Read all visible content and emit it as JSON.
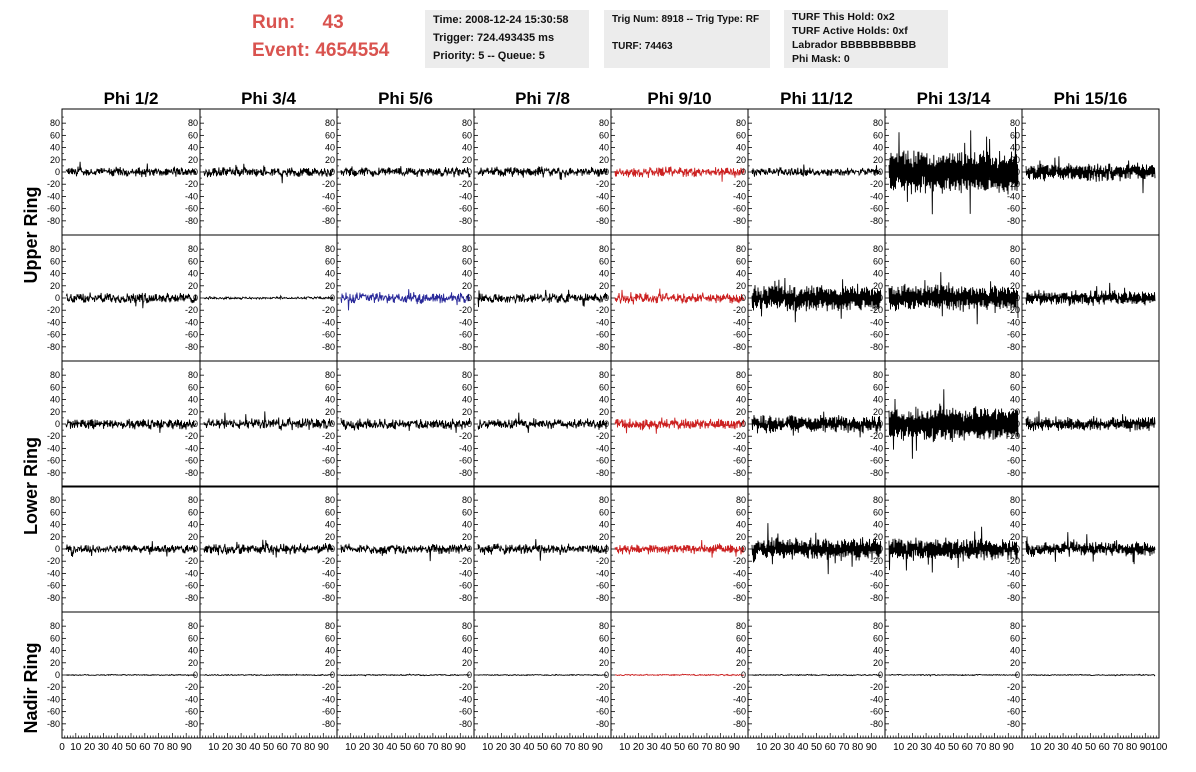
{
  "header": {
    "run_label": "Run:",
    "run_value": "43",
    "event_label": "Event:",
    "event_value": "4654554",
    "time": "Time: 2008-12-24 15:30:58",
    "trigger": "Trigger: 724.493435 ms",
    "priority": "Priority: 5 -- Queue: 5",
    "trig_num": "Trig Num: 8918 -- Trig Type: RF",
    "turf": "TURF: 74463",
    "turf_hold": "TURF This Hold: 0x2",
    "turf_active": "TURF Active Holds: 0xf",
    "labrador": "Labrador BBBBBBBBBB",
    "phi_mask": "Phi Mask: 0"
  },
  "colors": {
    "accent_red": "#d9534f",
    "trace_black": "#000000",
    "trace_red": "#cc2222",
    "trace_blue": "#2a2a9a",
    "info_bg": "#ececec"
  },
  "chart_data": {
    "type": "line",
    "columns": [
      "Phi 1/2",
      "Phi 3/4",
      "Phi 5/6",
      "Phi 7/8",
      "Phi 9/10",
      "Phi 11/12",
      "Phi 13/14",
      "Phi 15/16"
    ],
    "ring_labels": [
      "Upper Ring",
      "Lower Ring",
      "Nadir Ring"
    ],
    "ylim": [
      -95,
      95
    ],
    "yticks": [
      80,
      60,
      40,
      20,
      0,
      -20,
      -40,
      -60,
      -80
    ],
    "xlim": [
      0,
      100
    ],
    "xticks": [
      10,
      20,
      30,
      40,
      50,
      60,
      70,
      80,
      90
    ],
    "first_xtick": "0",
    "last_xtick": "100",
    "rows": [
      [
        {
          "color": "black",
          "amp": 13,
          "osc": 0.35
        },
        {
          "color": "black",
          "amp": 13,
          "osc": 0.35
        },
        {
          "color": "black",
          "amp": 13,
          "osc": 0.35
        },
        {
          "color": "black",
          "amp": 13,
          "osc": 0.35
        },
        {
          "color": "red",
          "amp": 15,
          "osc": 0.4
        },
        {
          "color": "black",
          "amp": 11,
          "osc": 0.35
        },
        {
          "color": "black",
          "amp": 46,
          "osc": 0.85
        },
        {
          "color": "black",
          "amp": 22,
          "osc": 0.65
        }
      ],
      [
        {
          "color": "black",
          "amp": 14,
          "osc": 0.35
        },
        {
          "color": "black",
          "amp": 3,
          "osc": 0.2
        },
        {
          "color": "blue",
          "amp": 15,
          "osc": 0.35
        },
        {
          "color": "black",
          "amp": 13,
          "osc": 0.35
        },
        {
          "color": "red",
          "amp": 14,
          "osc": 0.4
        },
        {
          "color": "black",
          "amp": 30,
          "osc": 0.75
        },
        {
          "color": "black",
          "amp": 30,
          "osc": 0.75
        },
        {
          "color": "black",
          "amp": 18,
          "osc": 0.6
        }
      ],
      [
        {
          "color": "black",
          "amp": 14,
          "osc": 0.4
        },
        {
          "color": "black",
          "amp": 15,
          "osc": 0.4
        },
        {
          "color": "black",
          "amp": 15,
          "osc": 0.4
        },
        {
          "color": "black",
          "amp": 14,
          "osc": 0.4
        },
        {
          "color": "red",
          "amp": 15,
          "osc": 0.45
        },
        {
          "color": "black",
          "amp": 22,
          "osc": 0.65
        },
        {
          "color": "black",
          "amp": 38,
          "osc": 0.8
        },
        {
          "color": "black",
          "amp": 18,
          "osc": 0.6
        }
      ],
      [
        {
          "color": "black",
          "amp": 11,
          "osc": 0.35
        },
        {
          "color": "black",
          "amp": 14,
          "osc": 0.4
        },
        {
          "color": "black",
          "amp": 13,
          "osc": 0.4
        },
        {
          "color": "black",
          "amp": 14,
          "osc": 0.4
        },
        {
          "color": "red",
          "amp": 14,
          "osc": 0.45
        },
        {
          "color": "black",
          "amp": 26,
          "osc": 0.7
        },
        {
          "color": "black",
          "amp": 26,
          "osc": 0.7
        },
        {
          "color": "black",
          "amp": 18,
          "osc": 0.6
        }
      ],
      [
        {
          "color": "black",
          "amp": 1.2,
          "osc": 0.1
        },
        {
          "color": "black",
          "amp": 1.2,
          "osc": 0.1
        },
        {
          "color": "black",
          "amp": 1.2,
          "osc": 0.1
        },
        {
          "color": "black",
          "amp": 1.2,
          "osc": 0.1
        },
        {
          "color": "red",
          "amp": 1.5,
          "osc": 0.1
        },
        {
          "color": "black",
          "amp": 1.2,
          "osc": 0.1
        },
        {
          "color": "black",
          "amp": 1.2,
          "osc": 0.1
        },
        {
          "color": "black",
          "amp": 1.2,
          "osc": 0.1
        }
      ]
    ]
  }
}
